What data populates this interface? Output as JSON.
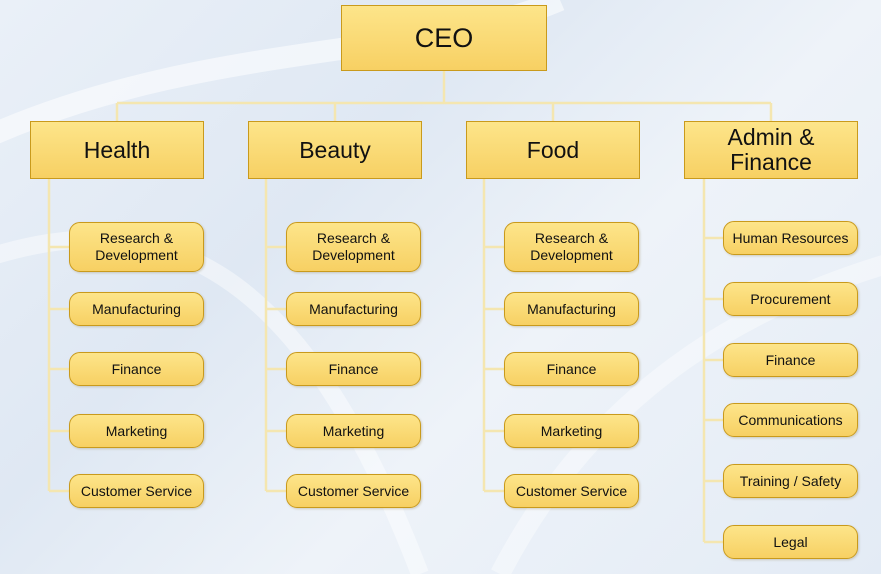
{
  "ceo": "CEO",
  "divisions": [
    {
      "name": "Health",
      "items": [
        "Research &\nDevelopment",
        "Manufacturing",
        "Finance",
        "Marketing",
        "Customer Service"
      ]
    },
    {
      "name": "Beauty",
      "items": [
        "Research &\nDevelopment",
        "Manufacturing",
        "Finance",
        "Marketing",
        "Customer Service"
      ]
    },
    {
      "name": "Food",
      "items": [
        "Research &\nDevelopment",
        "Manufacturing",
        "Finance",
        "Marketing",
        "Customer Service"
      ]
    },
    {
      "name": "Admin &\nFinance",
      "items": [
        "Human Resources",
        "Procurement",
        "Finance",
        "Communications",
        "Training / Safety",
        "Legal"
      ]
    }
  ]
}
